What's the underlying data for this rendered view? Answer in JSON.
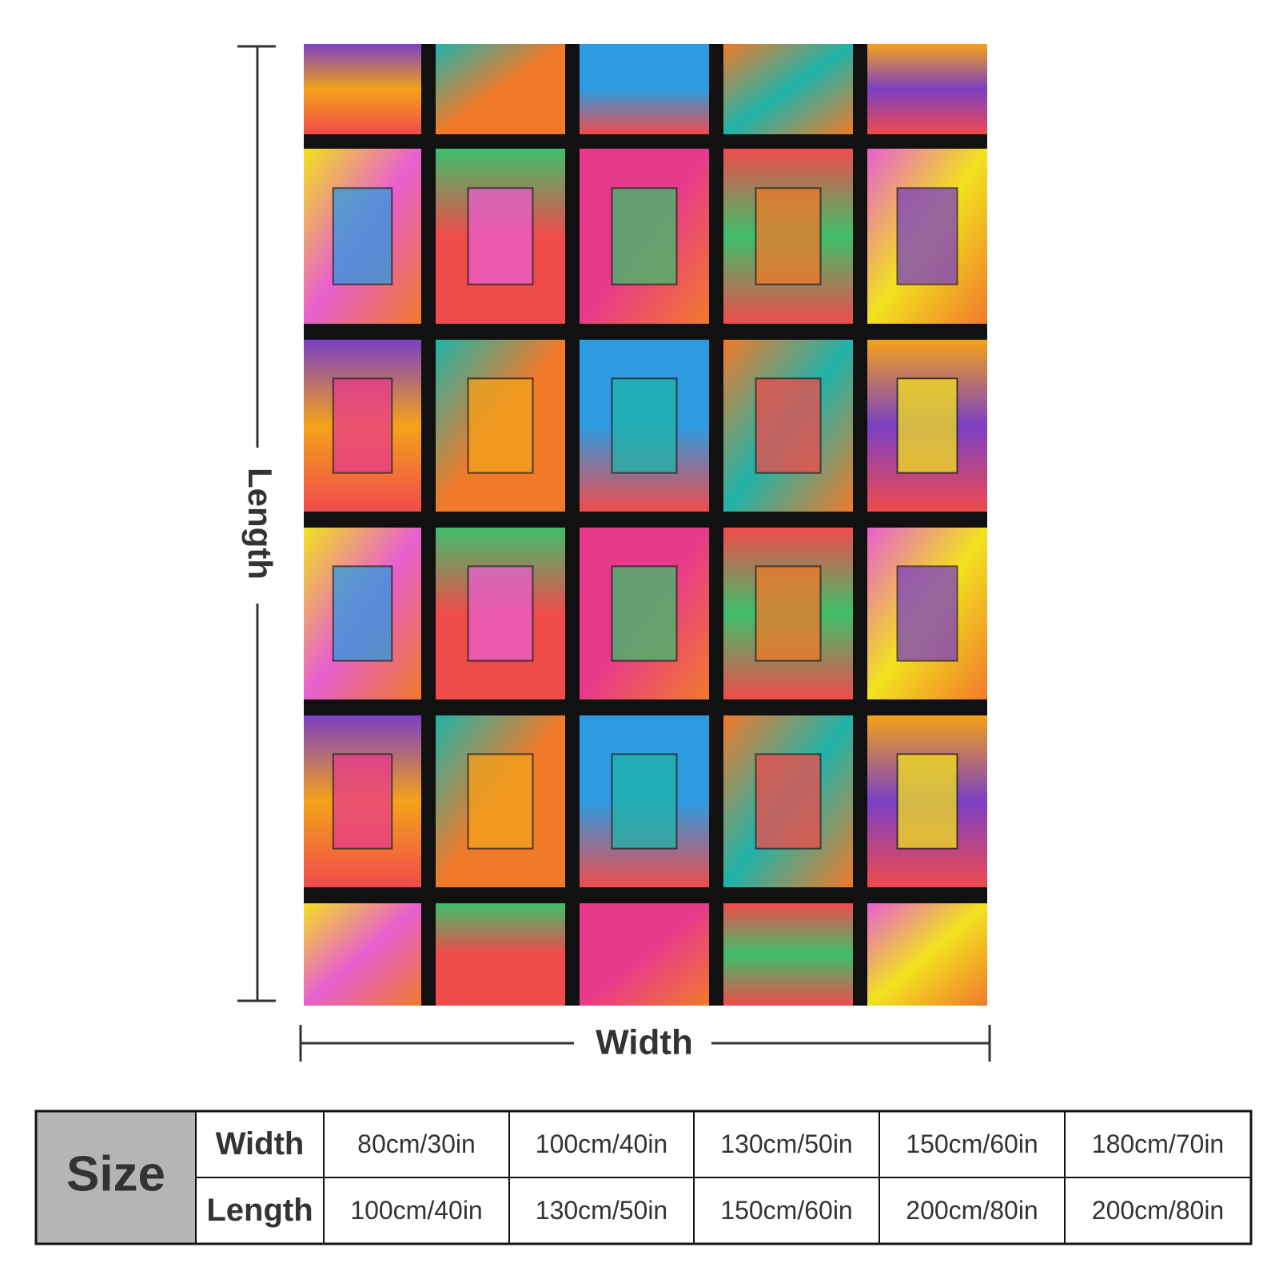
{
  "dimensions": {
    "length_label": "Length",
    "width_label": "Width"
  },
  "table": {
    "corner": "Size",
    "rows": [
      [
        "Width",
        "80cm/30in",
        "100cm/40in",
        "130cm/50in",
        "150cm/60in",
        "180cm/70in"
      ],
      [
        "Length",
        "100cm/40in",
        "130cm/50in",
        "150cm/60in",
        "200cm/80in",
        "200cm/80in"
      ]
    ]
  }
}
